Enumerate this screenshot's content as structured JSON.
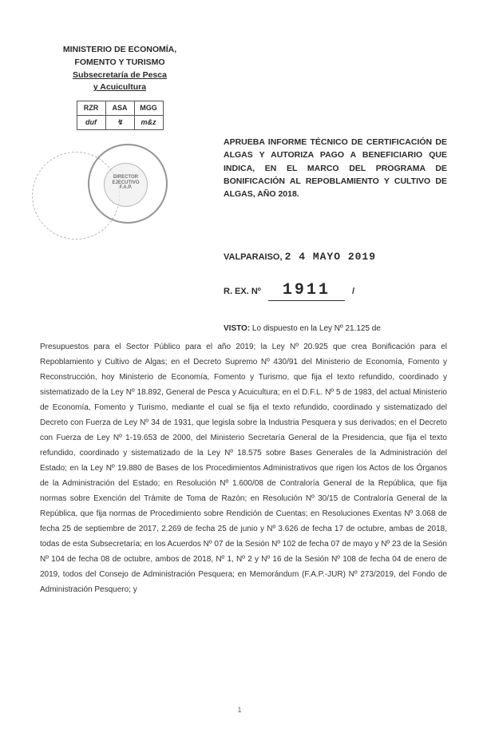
{
  "header": {
    "line1": "MINISTERIO DE ECONOMÍA,",
    "line2": "FOMENTO Y TURISMO",
    "line3": "Subsecretaría de Pesca",
    "line4": "y Acuicultura"
  },
  "initials": {
    "h1": "RZR",
    "h2": "ASA",
    "h3": "MGG",
    "s1": "duf",
    "s2": "↯",
    "s3": "m&z"
  },
  "stamp": {
    "inner_line1": "DIRECTOR",
    "inner_line2": "EJECUTIVO",
    "inner_line3": "F.A.P."
  },
  "title": "APRUEBA INFORME TÉCNICO DE CERTIFICACIÓN DE ALGAS Y AUTORIZA PAGO A BENEFICIARIO QUE INDICA, EN EL MARCO DEL PROGRAMA DE BONIFICACIÓN AL REPOBLAMIENTO Y CULTIVO DE ALGAS, AÑO 2018.",
  "place": "VALPARAISO,",
  "date": "2 4 MAYO 2019",
  "rex_label": "R. EX. Nº",
  "rex_number": "1911",
  "rex_tail": "/",
  "visto_label": "VISTO:",
  "visto_first": " Lo dispuesto en la Ley Nº 21.125 de",
  "body": "Presupuestos para el Sector Público para el año 2019; la Ley Nº 20.925 que crea Bonificación para el Repoblamiento y Cultivo de Algas; en el Decreto Supremo Nº 430/91 del Ministerio de Economía, Fomento y Reconstrucción, hoy Ministerio de Economía, Fomento y Turismo, que fija el texto refundido, coordinado y sistematizado de la Ley Nº 18.892, General de Pesca y Acuicultura; en el D.F.L. Nº 5 de 1983, del actual Ministerio de Economía, Fomento y Turismo, mediante el cual se fija el texto refundido, coordinado y sistematizado del Decreto con Fuerza de Ley Nº 34 de 1931, que legisla sobre la Industria Pesquera y sus derivados; en el Decreto con Fuerza de Ley Nº 1-19.653 de 2000, del Ministerio Secretaría General de la Presidencia, que fija el texto refundido, coordinado y sistematizado de la Ley Nº 18.575 sobre Bases Generales de la Administración del Estado; en la Ley Nº 19.880 de Bases de los Procedimientos Administrativos que rigen los Actos de los Órganos de la Administración del Estado; en Resolución Nº 1.600/08 de Contraloría General de la República, que fija normas sobre Exención del Trámite de Toma de Razón; en Resolución Nº 30/15 de Contraloría General de la República, que fija normas de Procedimiento sobre Rendición de Cuentas; en Resoluciones Exentas Nº 3.068 de fecha 25 de septiembre de 2017, 2.269 de fecha 25 de junio y Nº 3.626 de fecha 17 de octubre, ambas de 2018, todas de esta Subsecretaría; en los Acuerdos Nº 07 de la Sesión Nº 102 de fecha 07 de mayo y Nº 23 de la Sesión Nº 104 de fecha 08 de octubre, ambos de 2018, Nº 1, Nº 2 y Nº 16 de la Sesión Nº 108 de fecha 04 de enero de 2019, todos del Consejo de Administración Pesquera; en Memorándum (F.A.P.-JUR) Nº 273/2019, del Fondo de Administración Pesquero; y",
  "page_number": "1"
}
